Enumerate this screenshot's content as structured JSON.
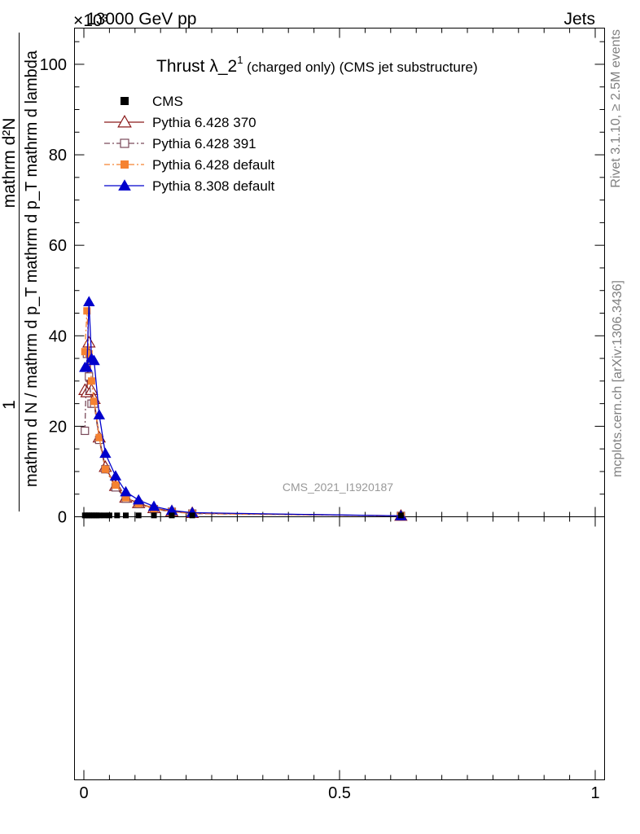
{
  "header": {
    "left": "13000 GeV pp",
    "right": "Jets",
    "exponent": "×10³"
  },
  "side": {
    "rivet": "Rivet 3.1.10, ≥ 2.5M events",
    "mcplots": "mcplots.cern.ch [arXiv:1306.3436]"
  },
  "watermark": "CMS_2021_I1920187",
  "chart_data": {
    "type": "line",
    "title_main": "Thrust λ_2",
    "title_sup": "1",
    "title_sub": " (charged only) (CMS jet substructure)",
    "ylabel_top": "1",
    "ylabel_num": "mathrm d²N",
    "ylabel_den": "mathrm d N / mathrm d p_T mathrm d p_T mathrm d lambda",
    "xlim": [
      0,
      1
    ],
    "ylim": [
      0,
      108
    ],
    "x_ticks": [
      {
        "value": 0,
        "label": "0"
      },
      {
        "value": 0.5,
        "label": "0.5"
      },
      {
        "value": 1,
        "label": "1"
      }
    ],
    "y_ticks": [
      {
        "value": 0,
        "label": "0"
      },
      {
        "value": 20,
        "label": "20"
      },
      {
        "value": 40,
        "label": "40"
      },
      {
        "value": 60,
        "label": "60"
      },
      {
        "value": 80,
        "label": "80"
      },
      {
        "value": 100,
        "label": "100"
      }
    ],
    "series": [
      {
        "name": "CMS",
        "color": "#000000",
        "marker": "square-filled",
        "line": "none",
        "x": [
          0.002,
          0.006,
          0.01,
          0.015,
          0.02,
          0.025,
          0.03,
          0.04,
          0.05,
          0.065,
          0.082,
          0.107,
          0.137,
          0.172,
          0.212,
          0.62
        ],
        "y": [
          0.3,
          0.3,
          0.3,
          0.3,
          0.3,
          0.3,
          0.3,
          0.3,
          0.3,
          0.3,
          0.3,
          0.3,
          0.3,
          0.3,
          0.3,
          0.3
        ]
      },
      {
        "name": "Pythia 6.428 370",
        "color": "#8b1a1a",
        "marker": "triangle-open",
        "line": "solid",
        "x": [
          0.002,
          0.006,
          0.01,
          0.015,
          0.02,
          0.03,
          0.042,
          0.062,
          0.082,
          0.107,
          0.137,
          0.172,
          0.212,
          0.62
        ],
        "y": [
          28,
          27.5,
          38.5,
          28,
          26,
          17.5,
          11,
          6.8,
          4.2,
          3,
          1.9,
          1.2,
          0.8,
          0.2
        ]
      },
      {
        "name": "Pythia 6.428 391",
        "color": "#7a4a5a",
        "marker": "square-open",
        "line": "dashdot",
        "x": [
          0.002,
          0.006,
          0.01,
          0.015,
          0.02,
          0.03,
          0.042,
          0.062,
          0.082,
          0.107,
          0.137,
          0.172,
          0.212,
          0.62
        ],
        "y": [
          19,
          36,
          31,
          25,
          25,
          17,
          10.5,
          6.5,
          4,
          2.8,
          1.7,
          1.1,
          0.7,
          0.2
        ]
      },
      {
        "name": "Pythia 6.428 default",
        "color": "#f58231",
        "marker": "square-filled",
        "line": "dashdot",
        "x": [
          0.002,
          0.006,
          0.01,
          0.015,
          0.02,
          0.03,
          0.042,
          0.062,
          0.082,
          0.107,
          0.137,
          0.172,
          0.212,
          0.62
        ],
        "y": [
          36.5,
          45.5,
          36,
          30,
          25.5,
          17.5,
          10.5,
          7,
          4.2,
          2.9,
          1.8,
          1.1,
          0.7,
          0.2
        ]
      },
      {
        "name": "Pythia 8.308 default",
        "color": "#0000cc",
        "marker": "triangle-filled",
        "line": "solid",
        "x": [
          0.002,
          0.006,
          0.01,
          0.015,
          0.02,
          0.03,
          0.042,
          0.062,
          0.082,
          0.107,
          0.137,
          0.172,
          0.212,
          0.62
        ],
        "y": [
          33,
          33,
          47.5,
          35,
          34.5,
          22.5,
          14,
          9,
          5.5,
          3.7,
          2.3,
          1.4,
          0.9,
          0.2
        ]
      }
    ]
  }
}
